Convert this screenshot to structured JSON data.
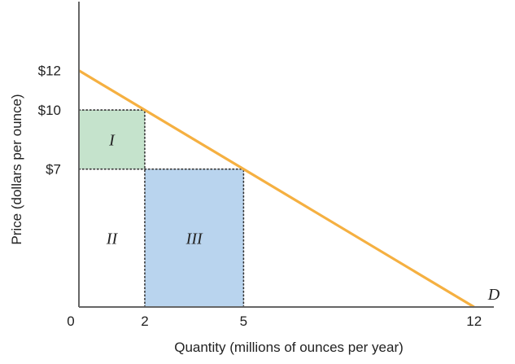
{
  "chart_data": {
    "type": "line",
    "title": "",
    "xlabel": "Quantity (millions of ounces per year)",
    "ylabel": "Price (dollars per ounce)",
    "xlim": [
      0,
      12.6
    ],
    "ylim": [
      0,
      15.5
    ],
    "x_ticks": [
      {
        "value": 0,
        "label": "0"
      },
      {
        "value": 2,
        "label": "2"
      },
      {
        "value": 5,
        "label": "5"
      },
      {
        "value": 12,
        "label": "12"
      }
    ],
    "y_ticks": [
      {
        "value": 12,
        "label": "$12"
      },
      {
        "value": 10,
        "label": "$10"
      },
      {
        "value": 7,
        "label": "$7"
      }
    ],
    "series": [
      {
        "name": "D",
        "x": [
          0,
          12
        ],
        "y": [
          12,
          0
        ]
      }
    ],
    "regions": [
      {
        "label": "I",
        "x_range": [
          0,
          2
        ],
        "y_range": [
          7,
          10
        ],
        "label_at": [
          1,
          8.5
        ],
        "color": "#c5e3cc"
      },
      {
        "label": "II",
        "x_range": [
          0,
          2
        ],
        "y_range": [
          0,
          7
        ],
        "label_at": [
          1,
          3.5
        ],
        "color": "#ffffff"
      },
      {
        "label": "III",
        "x_range": [
          2,
          5
        ],
        "y_range": [
          0,
          7
        ],
        "label_at": [
          3.5,
          3.5
        ],
        "color": "#b9d4ee"
      }
    ],
    "guides": [
      {
        "x": [
          0,
          2
        ],
        "y": [
          10,
          10
        ]
      },
      {
        "x": [
          2,
          2
        ],
        "y": [
          0,
          10
        ]
      },
      {
        "x": [
          0,
          5
        ],
        "y": [
          7,
          7
        ]
      },
      {
        "x": [
          5,
          5
        ],
        "y": [
          0,
          7
        ]
      }
    ],
    "grid": false,
    "legend": "none",
    "colors": {
      "curve": "#f5b041",
      "axis": "#666666",
      "guide": "#333333"
    }
  }
}
